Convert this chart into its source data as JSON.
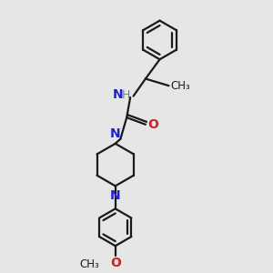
{
  "background_color": "#e6e6e6",
  "bond_color": "#1a1a1a",
  "n_color": "#2020cc",
  "o_color": "#cc2020",
  "h_color": "#4a9090",
  "line_width": 1.6,
  "font_size": 9,
  "fig_size": [
    3.0,
    3.0
  ],
  "dpi": 100,
  "xlim": [
    0,
    10
  ],
  "ylim": [
    0,
    10
  ]
}
